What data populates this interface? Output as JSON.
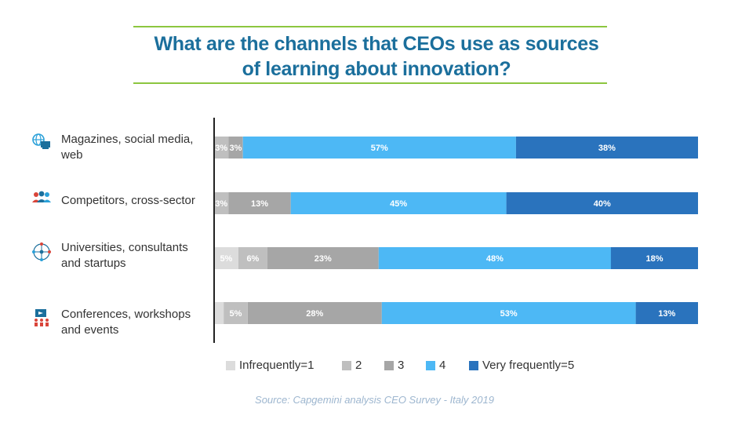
{
  "title": {
    "line1": "What are the channels that CEOs use as sources",
    "line2": "of learning about innovation?"
  },
  "chart_data": {
    "type": "bar",
    "orientation": "horizontal",
    "stacked": true,
    "title": "What are the channels that CEOs use as sources of learning about innovation?",
    "categories": [
      [
        "Magazines, social media,",
        "web"
      ],
      [
        "Competitors, cross-sector"
      ],
      [
        "Universities, consultants",
        "and startups"
      ],
      [
        "Conferences, workshops",
        "and events"
      ]
    ],
    "category_icons": [
      "globe-screen-icon",
      "people-group-icon",
      "network-globe-icon",
      "presenter-audience-icon"
    ],
    "series": [
      {
        "name": "Infrequently=1",
        "color": "#dcdcdc",
        "values": [
          0,
          0,
          5,
          2
        ],
        "labels": [
          "",
          "",
          "5%",
          ""
        ]
      },
      {
        "name": "2",
        "color": "#bfbfbf",
        "values": [
          3,
          3,
          6,
          5
        ],
        "labels": [
          "3%",
          "3%",
          "6%",
          "5%"
        ]
      },
      {
        "name": "3",
        "color": "#a6a6a6",
        "values": [
          3,
          13,
          23,
          28
        ],
        "labels": [
          "3%",
          "13%",
          "23%",
          "28%"
        ]
      },
      {
        "name": "4",
        "color": "#4db8f5",
        "values": [
          57,
          45,
          48,
          53
        ],
        "labels": [
          "57%",
          "45%",
          "48%",
          "53%"
        ]
      },
      {
        "name": "Very frequently=5",
        "color": "#2a73bd",
        "values": [
          38,
          40,
          18,
          13
        ],
        "labels": [
          "38%",
          "40%",
          "18%",
          "13%"
        ]
      }
    ],
    "xlim": [
      0,
      100
    ],
    "grid": false,
    "legend_position": "bottom"
  },
  "source": "Source: Capgemini analysis CEO Survey - Italy 2019"
}
